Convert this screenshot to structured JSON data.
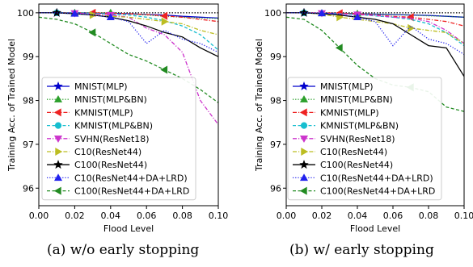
{
  "captions": [
    "(a) w/o early stopping",
    "(b) w/ early stopping"
  ],
  "legend_marker_styles": {
    "MNIST(MLP)": "star",
    "MNIST(MLP&BN)": "triangle-up",
    "KMNIST(MLP)": "triangle-left",
    "KMNIST(MLP&BN)": "circle",
    "SVHN(ResNet18)": "triangle-down",
    "C10(ResNet44)": "triangle-right",
    "C100(ResNet44)": "star",
    "C10(ResNet44+DA+LRD)": "triangle-up",
    "C100(ResNet44+DA+LRD": "triangle-left"
  },
  "chart_data": [
    {
      "type": "line",
      "xlabel": "Flood Level",
      "ylabel": "Training Acc. of Trained Model",
      "xlim": [
        0.0,
        0.1
      ],
      "ylim": [
        95.6,
        100.2
      ],
      "xticks": [
        "0.00",
        "0.02",
        "0.04",
        "0.06",
        "0.08",
        "0.10"
      ],
      "yticks": [
        "96",
        "97",
        "98",
        "99",
        "100"
      ],
      "legend_position": "lower-left",
      "grid": false,
      "reference_line": 100,
      "x": [
        0.0,
        0.01,
        0.02,
        0.03,
        0.04,
        0.05,
        0.06,
        0.07,
        0.08,
        0.09,
        0.1
      ],
      "series": [
        {
          "name": "MNIST(MLP)",
          "color": "#0000cc",
          "dash": "solid",
          "values": [
            100.0,
            100.0,
            100.0,
            99.99,
            99.99,
            99.98,
            99.96,
            99.95,
            99.92,
            99.9,
            99.88
          ]
        },
        {
          "name": "MNIST(MLP&BN)",
          "color": "#2ca02c",
          "dash": "dotted",
          "values": [
            100.0,
            100.0,
            100.0,
            100.0,
            100.0,
            99.98,
            99.95,
            99.92,
            99.9,
            99.88,
            99.87
          ]
        },
        {
          "name": "KMNIST(MLP)",
          "color": "#ee2222",
          "dash": "dashdot",
          "values": [
            100.0,
            100.0,
            100.0,
            100.0,
            99.99,
            99.98,
            99.96,
            99.93,
            99.9,
            99.85,
            99.8
          ]
        },
        {
          "name": "KMNIST(MLP&BN)",
          "color": "#17becf",
          "dash": "dashed",
          "values": [
            100.0,
            100.0,
            100.0,
            99.99,
            99.97,
            99.95,
            99.9,
            99.82,
            99.7,
            99.5,
            99.15
          ]
        },
        {
          "name": "SVHN(ResNet18)",
          "color": "#cc33cc",
          "dash": "dashdot",
          "values": [
            100.0,
            100.0,
            99.99,
            99.98,
            99.95,
            99.9,
            99.65,
            99.5,
            99.1,
            98.0,
            97.45
          ]
        },
        {
          "name": "C10(ResNet44)",
          "color": "#bcbd22",
          "dash": "dashdot",
          "values": [
            100.0,
            100.0,
            99.98,
            99.95,
            99.92,
            99.9,
            99.85,
            99.8,
            99.75,
            99.6,
            99.5
          ]
        },
        {
          "name": "C100(ResNet44)",
          "color": "#000000",
          "dash": "solid",
          "values": [
            100.0,
            100.0,
            99.98,
            99.95,
            99.9,
            99.82,
            99.7,
            99.55,
            99.45,
            99.2,
            99.0
          ]
        },
        {
          "name": "C10(ResNet44+DA+LRD)",
          "color": "#2222ee",
          "dash": "dotted",
          "values": [
            100.0,
            100.0,
            99.98,
            99.95,
            99.9,
            99.8,
            99.3,
            99.6,
            99.4,
            99.3,
            99.1
          ]
        },
        {
          "name": "C100(ResNet44+DA+LRD",
          "color": "#228b22",
          "dash": "dashed",
          "values": [
            99.9,
            99.85,
            99.75,
            99.55,
            99.3,
            99.05,
            98.9,
            98.7,
            98.5,
            98.25,
            97.95
          ]
        }
      ]
    },
    {
      "type": "line",
      "xlabel": "Flood Level",
      "ylabel": "Training Acc. of Trained Model",
      "xlim": [
        0.0,
        0.1
      ],
      "ylim": [
        95.6,
        100.2
      ],
      "xticks": [
        "0.00",
        "0.02",
        "0.04",
        "0.06",
        "0.08",
        "0.10"
      ],
      "yticks": [
        "96",
        "97",
        "98",
        "99",
        "100"
      ],
      "legend_position": "lower-left",
      "grid": false,
      "reference_line": 100,
      "x": [
        0.0,
        0.01,
        0.02,
        0.03,
        0.04,
        0.05,
        0.06,
        0.07,
        0.08,
        0.09,
        0.1
      ],
      "series": [
        {
          "name": "MNIST(MLP)",
          "color": "#0000cc",
          "dash": "solid",
          "values": [
            100.0,
            100.0,
            99.99,
            99.99,
            99.98,
            99.97,
            99.96,
            99.95,
            99.94,
            99.92,
            99.9
          ]
        },
        {
          "name": "MNIST(MLP&BN)",
          "color": "#2ca02c",
          "dash": "dotted",
          "values": [
            100.0,
            100.0,
            99.99,
            99.99,
            99.98,
            99.97,
            99.96,
            99.95,
            99.93,
            99.92,
            99.9
          ]
        },
        {
          "name": "KMNIST(MLP)",
          "color": "#ee2222",
          "dash": "dashdot",
          "values": [
            100.0,
            100.0,
            100.0,
            99.99,
            99.98,
            99.95,
            99.92,
            99.9,
            99.85,
            99.8,
            99.7
          ]
        },
        {
          "name": "KMNIST(MLP&BN)",
          "color": "#17becf",
          "dash": "dashed",
          "values": [
            100.0,
            100.0,
            99.99,
            99.98,
            99.96,
            99.93,
            99.9,
            99.85,
            99.75,
            99.55,
            99.25
          ]
        },
        {
          "name": "SVHN(ResNet18)",
          "color": "#cc33cc",
          "dash": "dashdot",
          "values": [
            100.0,
            100.0,
            99.99,
            99.98,
            99.96,
            99.94,
            99.9,
            99.88,
            99.8,
            99.6,
            99.3
          ]
        },
        {
          "name": "C10(ResNet44)",
          "color": "#bcbd22",
          "dash": "dashdot",
          "values": [
            100.0,
            100.0,
            99.97,
            99.9,
            99.85,
            99.8,
            99.75,
            99.65,
            99.6,
            99.55,
            99.3
          ]
        },
        {
          "name": "C100(ResNet44)",
          "color": "#000000",
          "dash": "solid",
          "values": [
            100.0,
            100.0,
            99.98,
            99.95,
            99.9,
            99.85,
            99.75,
            99.5,
            99.25,
            99.2,
            98.55
          ]
        },
        {
          "name": "C10(ResNet44+DA+LRD)",
          "color": "#2222ee",
          "dash": "dotted",
          "values": [
            100.0,
            100.0,
            99.99,
            99.97,
            99.9,
            99.8,
            99.25,
            99.7,
            99.4,
            99.3,
            99.05
          ]
        },
        {
          "name": "C100(ResNet44+DA+LRD",
          "color": "#228b22",
          "dash": "dashed",
          "values": [
            99.9,
            99.85,
            99.6,
            99.2,
            98.8,
            98.5,
            98.35,
            98.3,
            98.2,
            97.85,
            97.75
          ]
        }
      ]
    }
  ]
}
